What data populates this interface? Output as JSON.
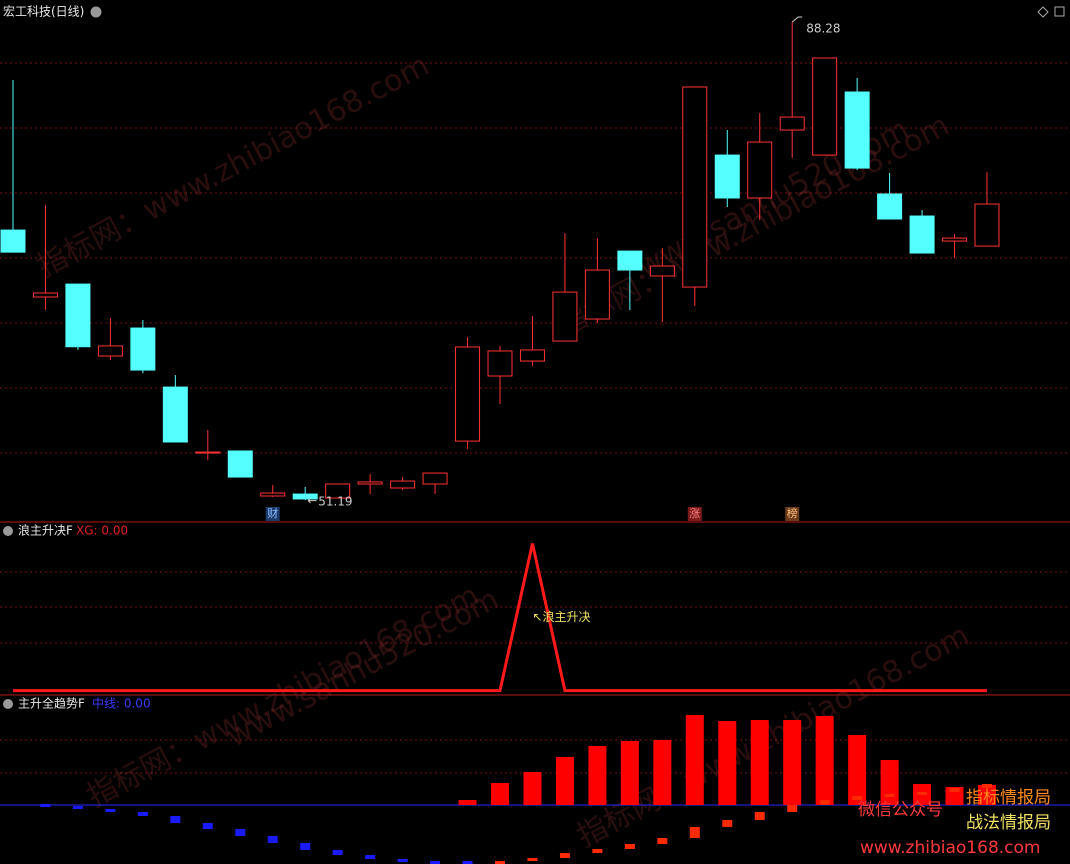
{
  "chart_data": [
    {
      "type": "candlestick",
      "title": "宏工科技(日线)",
      "open": [
        72.14,
        66.95,
        67.95,
        62.37,
        64.54,
        59.96,
        54.92,
        55.0,
        51.51,
        51.66,
        51.35,
        52.44,
        52.13,
        52.44,
        55.77,
        60.82,
        61.98,
        63.53,
        65.24,
        70.51,
        68.58,
        67.72,
        77.96,
        74.63,
        79.9,
        77.96,
        82.85,
        74.94,
        73.23,
        71.29,
        70.9
      ],
      "high": [
        83.78,
        74.08,
        67.95,
        65.32,
        65.16,
        60.89,
        56.63,
        55.0,
        52.36,
        52.21,
        52.44,
        53.21,
        52.98,
        53.29,
        63.84,
        63.15,
        65.47,
        71.91,
        71.52,
        70.51,
        70.75,
        83.24,
        79.9,
        81.22,
        88.28,
        85.49,
        83.94,
        76.57,
        73.7,
        71.83,
        76.64
      ],
      "low": [
        70.43,
        65.94,
        62.84,
        62.06,
        61.05,
        55.7,
        54.3,
        52.98,
        51.43,
        51.19,
        51.35,
        51.66,
        51.97,
        51.66,
        55.15,
        58.65,
        61.59,
        63.53,
        64.93,
        65.94,
        65.01,
        66.25,
        73.93,
        72.92,
        77.73,
        77.96,
        76.8,
        73.0,
        70.36,
        69.97,
        70.9
      ],
      "close": [
        70.43,
        67.26,
        63.09,
        63.15,
        61.28,
        55.7,
        54.92,
        52.98,
        51.74,
        51.28,
        52.44,
        52.6,
        52.67,
        53.29,
        63.07,
        62.76,
        62.84,
        67.33,
        69.04,
        69.04,
        69.35,
        83.24,
        74.63,
        78.97,
        80.91,
        85.49,
        76.95,
        73.0,
        70.36,
        71.52,
        74.16
      ],
      "up_color": "#ff3232",
      "down_color": "#54ffff",
      "ylim": [
        49.57,
        89.99
      ],
      "max_label": 88.28,
      "min_label": 51.19,
      "events": [
        null,
        null,
        null,
        null,
        null,
        null,
        null,
        null,
        "财",
        null,
        null,
        null,
        null,
        null,
        null,
        null,
        null,
        null,
        null,
        null,
        null,
        "涨",
        null,
        null,
        "榜",
        null,
        null,
        null,
        null,
        null,
        null
      ]
    },
    {
      "type": "line",
      "title": "浪主升决F",
      "legend": "XG: 0.00",
      "values": [
        0,
        0,
        0,
        0,
        0,
        0,
        0,
        0,
        0,
        0,
        0,
        0,
        0,
        0,
        0,
        0,
        1,
        0,
        0,
        0,
        0,
        0,
        0,
        0,
        0,
        0,
        0,
        0,
        0,
        0,
        0
      ],
      "color": "#ff1a1a",
      "ylim": [
        -0.03,
        1.14
      ],
      "annotation": "↖浪主升决"
    },
    {
      "type": "bar",
      "title": "主升全趋势F",
      "midline": {
        "value": 0,
        "label": "中线: 0.00"
      },
      "midline_color": "#2a2aff",
      "series": [
        {
          "color": "#ff0000",
          "values": [
            0,
            0,
            0,
            0,
            0,
            0,
            0,
            0,
            0,
            0,
            0,
            0,
            0,
            0,
            0.05,
            0.22,
            0.33,
            0.48,
            0.59,
            0.64,
            0.65,
            0.9,
            0.84,
            0.85,
            0.85,
            0.89,
            0.7,
            0.45,
            0.21,
            0.18,
            0.2
          ]
        },
        {
          "up_color": "#ff2a00",
          "down_color": "#1a1aff",
          "values": [
            0.01,
            -0.01,
            -0.04,
            -0.07,
            -0.11,
            -0.18,
            -0.24,
            -0.31,
            -0.38,
            -0.45,
            -0.5,
            -0.54,
            -0.57,
            -0.59,
            -0.59,
            -0.56,
            -0.53,
            -0.48,
            -0.44,
            -0.39,
            -0.33,
            -0.22,
            -0.15,
            -0.07,
            0.0,
            0.05,
            0.09,
            0.11,
            0.13,
            0.17,
            0.21
          ]
        }
      ],
      "ylim": [
        -0.59,
        1.09
      ]
    }
  ],
  "watermarks": [
    "指标网：www.zhibiao168.com",
    "www.sanhu520.com"
  ],
  "branding": {
    "wechat": "微信公众号",
    "name1": "指标情报局",
    "name2": "战法情报局",
    "url": "www.zhibiao168.com"
  }
}
